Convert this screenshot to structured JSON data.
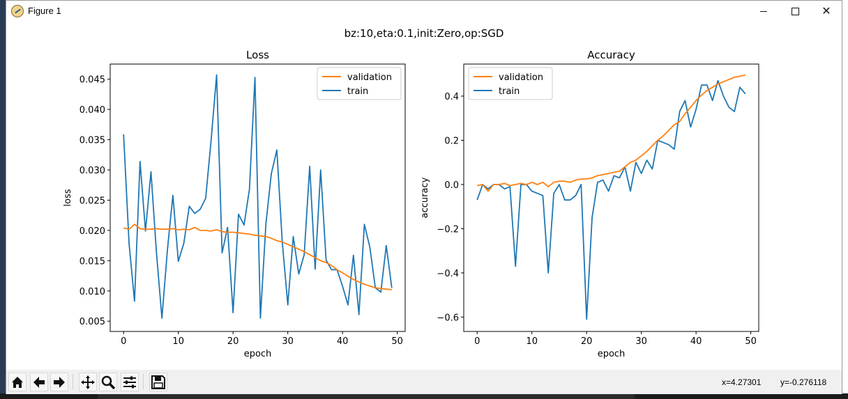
{
  "window": {
    "title": "Figure 1",
    "minimize_glyph": "",
    "close_glyph": "✕"
  },
  "figure": {
    "suptitle": "bz:10,eta:0.1,init:Zero,op:SGD"
  },
  "colors": {
    "validation": "#ff7f0e",
    "train": "#1f77b4"
  },
  "chart_data": [
    {
      "type": "line",
      "title": "Loss",
      "xlabel": "epoch",
      "ylabel": "loss",
      "xlim": [
        -2.45,
        51.45
      ],
      "ylim": [
        0.0033,
        0.0475
      ],
      "xticks": [
        0,
        10,
        20,
        30,
        40,
        50
      ],
      "xtick_labels": [
        "0",
        "10",
        "20",
        "30",
        "40",
        "50"
      ],
      "yticks": [
        0.005,
        0.01,
        0.015,
        0.02,
        0.025,
        0.03,
        0.035,
        0.04,
        0.045
      ],
      "ytick_labels": [
        "0.005",
        "0.010",
        "0.015",
        "0.020",
        "0.025",
        "0.030",
        "0.035",
        "0.040",
        "0.045"
      ],
      "legend": "top-right",
      "grid": false,
      "series": [
        {
          "name": "validation",
          "color": "#ff7f0e",
          "x": [
            0,
            1,
            2,
            3,
            4,
            5,
            6,
            7,
            8,
            9,
            10,
            11,
            12,
            13,
            14,
            15,
            16,
            17,
            18,
            19,
            20,
            21,
            22,
            23,
            24,
            25,
            26,
            27,
            28,
            29,
            30,
            31,
            32,
            33,
            34,
            35,
            36,
            37,
            38,
            39,
            40,
            41,
            42,
            43,
            44,
            45,
            46,
            47,
            48,
            49
          ],
          "values": [
            0.0204,
            0.0202,
            0.021,
            0.0203,
            0.0202,
            0.0202,
            0.0203,
            0.0202,
            0.0202,
            0.0203,
            0.0201,
            0.0202,
            0.0201,
            0.0205,
            0.02,
            0.02,
            0.0199,
            0.0201,
            0.0198,
            0.0197,
            0.0197,
            0.0196,
            0.0195,
            0.0194,
            0.0192,
            0.0191,
            0.019,
            0.0187,
            0.0183,
            0.0181,
            0.0177,
            0.0173,
            0.0169,
            0.0165,
            0.016,
            0.0155,
            0.015,
            0.0147,
            0.0142,
            0.0135,
            0.013,
            0.0124,
            0.0119,
            0.0115,
            0.0111,
            0.0108,
            0.0105,
            0.0104,
            0.0103,
            0.0102
          ]
        },
        {
          "name": "train",
          "color": "#1f77b4",
          "x": [
            0,
            1,
            2,
            3,
            4,
            5,
            6,
            7,
            8,
            9,
            10,
            11,
            12,
            13,
            14,
            15,
            16,
            17,
            18,
            19,
            20,
            21,
            22,
            23,
            24,
            25,
            26,
            27,
            28,
            29,
            30,
            31,
            32,
            33,
            34,
            35,
            36,
            37,
            38,
            39,
            40,
            41,
            42,
            43,
            44,
            45,
            46,
            47,
            48,
            49
          ],
          "values": [
            0.0359,
            0.0178,
            0.0083,
            0.0314,
            0.0199,
            0.0297,
            0.0164,
            0.0055,
            0.0167,
            0.0258,
            0.0149,
            0.0179,
            0.024,
            0.0228,
            0.0235,
            0.0253,
            0.035,
            0.0457,
            0.0163,
            0.0205,
            0.0064,
            0.0227,
            0.0209,
            0.0268,
            0.0453,
            0.0055,
            0.0211,
            0.0294,
            0.0333,
            0.018,
            0.0077,
            0.019,
            0.0128,
            0.016,
            0.0306,
            0.0136,
            0.03,
            0.0151,
            0.0135,
            0.0135,
            0.0108,
            0.0077,
            0.0159,
            0.0061,
            0.021,
            0.0172,
            0.0105,
            0.0098,
            0.0175,
            0.0105
          ]
        }
      ]
    },
    {
      "type": "line",
      "title": "Accuracy",
      "xlabel": "epoch",
      "ylabel": "accuracy",
      "xlim": [
        -2.45,
        51.45
      ],
      "ylim": [
        -0.665,
        0.545
      ],
      "xticks": [
        0,
        10,
        20,
        30,
        40,
        50
      ],
      "xtick_labels": [
        "0",
        "10",
        "20",
        "30",
        "40",
        "50"
      ],
      "yticks": [
        -0.6,
        -0.4,
        -0.2,
        0.0,
        0.2,
        0.4
      ],
      "ytick_labels": [
        "−0.6",
        "−0.4",
        "−0.2",
        "0.0",
        "0.2",
        "0.4"
      ],
      "legend": "top-left",
      "grid": false,
      "series": [
        {
          "name": "validation",
          "color": "#ff7f0e",
          "x": [
            0,
            1,
            2,
            3,
            4,
            5,
            6,
            7,
            8,
            9,
            10,
            11,
            12,
            13,
            14,
            15,
            16,
            17,
            18,
            19,
            20,
            21,
            22,
            23,
            24,
            25,
            26,
            27,
            28,
            29,
            30,
            31,
            32,
            33,
            34,
            35,
            36,
            37,
            38,
            39,
            40,
            41,
            42,
            43,
            44,
            45,
            46,
            47,
            48,
            49
          ],
          "values": [
            -0.005,
            0.0,
            -0.03,
            0.0,
            0.0,
            0.005,
            -0.005,
            0.0,
            0.005,
            0.0,
            0.01,
            0.0,
            0.01,
            -0.01,
            0.01,
            0.015,
            0.015,
            0.01,
            0.02,
            0.025,
            0.025,
            0.03,
            0.04,
            0.045,
            0.05,
            0.055,
            0.06,
            0.08,
            0.1,
            0.11,
            0.13,
            0.15,
            0.175,
            0.2,
            0.22,
            0.245,
            0.27,
            0.285,
            0.32,
            0.35,
            0.38,
            0.405,
            0.425,
            0.44,
            0.455,
            0.465,
            0.475,
            0.485,
            0.49,
            0.495
          ]
        },
        {
          "name": "train",
          "color": "#1f77b4",
          "x": [
            0,
            1,
            2,
            3,
            4,
            5,
            6,
            7,
            8,
            9,
            10,
            11,
            12,
            13,
            14,
            15,
            16,
            17,
            18,
            19,
            20,
            21,
            22,
            23,
            24,
            25,
            26,
            27,
            28,
            29,
            30,
            31,
            32,
            33,
            34,
            35,
            36,
            37,
            38,
            39,
            40,
            41,
            42,
            43,
            44,
            45,
            46,
            47,
            48,
            49
          ],
          "values": [
            -0.07,
            0.0,
            -0.02,
            0.0,
            0.0,
            -0.02,
            -0.01,
            -0.37,
            0.0,
            0.0,
            -0.03,
            -0.04,
            -0.05,
            -0.4,
            -0.04,
            0.0,
            -0.07,
            -0.07,
            -0.05,
            0.0,
            -0.61,
            -0.15,
            0.01,
            0.02,
            -0.03,
            0.04,
            0.03,
            0.08,
            -0.03,
            0.1,
            0.05,
            0.11,
            0.07,
            0.2,
            0.19,
            0.18,
            0.16,
            0.33,
            0.38,
            0.26,
            0.34,
            0.45,
            0.45,
            0.38,
            0.47,
            0.4,
            0.35,
            0.33,
            0.44,
            0.41
          ]
        }
      ]
    }
  ],
  "toolbar": {
    "items": [
      {
        "name": "home-icon",
        "glyph": "home"
      },
      {
        "name": "back-icon",
        "glyph": "back"
      },
      {
        "name": "forward-icon",
        "glyph": "forward"
      },
      {
        "name": "pan-icon",
        "glyph": "pan"
      },
      {
        "name": "zoom-icon",
        "glyph": "zoom"
      },
      {
        "name": "subplots-icon",
        "glyph": "subplots"
      },
      {
        "name": "save-icon",
        "glyph": "save"
      }
    ],
    "coord_x": "x=4.27301",
    "coord_y": "y=-0.276118"
  }
}
